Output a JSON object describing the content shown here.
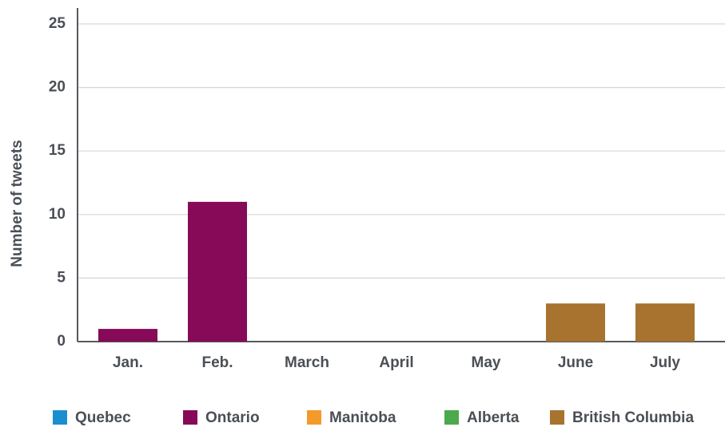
{
  "chart_data": {
    "type": "bar",
    "stacked": true,
    "y_label": "Number of tweets",
    "categories": [
      "Jan.",
      "Feb.",
      "March",
      "April",
      "May",
      "June",
      "July"
    ],
    "series": [
      {
        "name": "Quebec",
        "color": "#1a8fd0",
        "values": [
          0,
          0,
          0,
          0,
          0,
          0,
          0
        ]
      },
      {
        "name": "Ontario",
        "color": "#860a58",
        "values": [
          1,
          11,
          0,
          0,
          0,
          0,
          0
        ]
      },
      {
        "name": "Manitoba",
        "color": "#f39a2b",
        "values": [
          0,
          0,
          0,
          0,
          0,
          0,
          0
        ]
      },
      {
        "name": "Alberta",
        "color": "#4caa4c",
        "values": [
          0,
          0,
          0,
          0,
          0,
          0,
          0
        ]
      },
      {
        "name": "British Columbia",
        "color": "#a8722f",
        "values": [
          0,
          0,
          0,
          0,
          0,
          3,
          3
        ]
      }
    ],
    "ylim": [
      0,
      25
    ],
    "yticks": [
      0,
      5,
      10,
      15,
      20,
      25
    ],
    "grid": true,
    "legend": "bottom"
  }
}
